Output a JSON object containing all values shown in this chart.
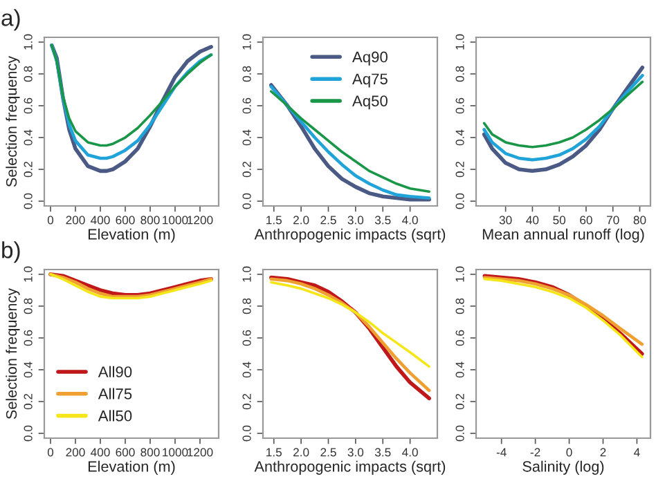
{
  "chart_data": [
    {
      "type": "line",
      "title": "a)",
      "xlabel": "Elevation (m)",
      "ylabel": "Selection frequency",
      "legend": false,
      "grid": false,
      "x": [
        10,
        50,
        100,
        150,
        200,
        300,
        400,
        450,
        500,
        600,
        700,
        800,
        900,
        1000,
        1100,
        1200,
        1290
      ],
      "xlim": [
        -50,
        1350
      ],
      "xticks": [
        0,
        200,
        400,
        600,
        800,
        1000,
        1200
      ],
      "ylim": [
        -0.03,
        1.03
      ],
      "yticks": [
        {
          "value": 0,
          "label": "0.0"
        },
        {
          "value": 0.2,
          "label": "0.2"
        },
        {
          "value": 0.4,
          "label": "0.4"
        },
        {
          "value": 0.6,
          "label": "0.6"
        },
        {
          "value": 0.8,
          "label": "0.8"
        },
        {
          "value": 1,
          "label": "1.0"
        }
      ],
      "series": [
        {
          "color": "#4a5a85",
          "values": [
            0.98,
            0.9,
            0.65,
            0.45,
            0.33,
            0.22,
            0.19,
            0.19,
            0.2,
            0.25,
            0.33,
            0.47,
            0.63,
            0.78,
            0.88,
            0.94,
            0.97
          ]
        },
        {
          "color": "#1fa3d8",
          "values": [
            0.98,
            0.88,
            0.65,
            0.48,
            0.38,
            0.29,
            0.27,
            0.27,
            0.28,
            0.32,
            0.38,
            0.48,
            0.6,
            0.72,
            0.81,
            0.88,
            0.92
          ]
        },
        {
          "color": "#1a9648",
          "values": [
            0.98,
            0.88,
            0.66,
            0.52,
            0.44,
            0.37,
            0.35,
            0.35,
            0.36,
            0.4,
            0.46,
            0.54,
            0.63,
            0.72,
            0.8,
            0.87,
            0.92
          ]
        }
      ]
    },
    {
      "type": "line",
      "xlabel": "Anthropogenic impacts (sqrt)",
      "legend": "top",
      "grid": false,
      "x": [
        1.45,
        1.75,
        2.0,
        2.25,
        2.5,
        2.75,
        3.0,
        3.25,
        3.5,
        3.75,
        4.0,
        4.35
      ],
      "xlim": [
        1.3,
        4.5
      ],
      "xticks": [
        {
          "value": 1.5,
          "label": "1.5"
        },
        {
          "value": 2,
          "label": "2.0"
        },
        {
          "value": 2.5,
          "label": "2.5"
        },
        {
          "value": 3,
          "label": "3.0"
        },
        {
          "value": 3.5,
          "label": "3.5"
        },
        {
          "value": 4,
          "label": "4.0"
        }
      ],
      "ylim": [
        -0.03,
        1.03
      ],
      "yticks": [
        {
          "value": 0,
          "label": "0.0"
        },
        {
          "value": 0.2,
          "label": "0.2"
        },
        {
          "value": 0.4,
          "label": "0.4"
        },
        {
          "value": 0.6,
          "label": "0.6"
        },
        {
          "value": 0.8,
          "label": "0.8"
        },
        {
          "value": 1,
          "label": "1.0"
        }
      ],
      "series": [
        {
          "name": "Aq90",
          "color": "#4a5a85",
          "values": [
            0.73,
            0.6,
            0.47,
            0.33,
            0.22,
            0.14,
            0.09,
            0.05,
            0.03,
            0.02,
            0.01,
            0.01
          ]
        },
        {
          "name": "Aq75",
          "color": "#1fa3d8",
          "values": [
            0.72,
            0.6,
            0.5,
            0.4,
            0.31,
            0.23,
            0.16,
            0.11,
            0.07,
            0.04,
            0.03,
            0.02
          ]
        },
        {
          "name": "Aq50",
          "color": "#1a9648",
          "values": [
            0.69,
            0.6,
            0.52,
            0.45,
            0.38,
            0.31,
            0.25,
            0.19,
            0.15,
            0.11,
            0.08,
            0.06
          ]
        }
      ]
    },
    {
      "type": "line",
      "xlabel": "Mean annual runoff (log)",
      "legend": false,
      "grid": false,
      "x": [
        22,
        25,
        30,
        35,
        40,
        45,
        50,
        55,
        60,
        65,
        70,
        75,
        81
      ],
      "xlim": [
        19,
        84
      ],
      "xticks": [
        30,
        40,
        50,
        60,
        70,
        80
      ],
      "ylim": [
        -0.03,
        1.03
      ],
      "yticks": [
        {
          "value": 0,
          "label": "0.0"
        },
        {
          "value": 0.2,
          "label": "0.2"
        },
        {
          "value": 0.4,
          "label": "0.4"
        },
        {
          "value": 0.6,
          "label": "0.6"
        },
        {
          "value": 0.8,
          "label": "0.8"
        },
        {
          "value": 1,
          "label": "1.0"
        }
      ],
      "series": [
        {
          "color": "#4a5a85",
          "values": [
            0.42,
            0.33,
            0.24,
            0.2,
            0.19,
            0.2,
            0.23,
            0.28,
            0.35,
            0.45,
            0.58,
            0.7,
            0.84
          ]
        },
        {
          "color": "#1fa3d8",
          "values": [
            0.45,
            0.37,
            0.3,
            0.27,
            0.26,
            0.27,
            0.29,
            0.33,
            0.39,
            0.47,
            0.58,
            0.68,
            0.79
          ]
        },
        {
          "color": "#1a9648",
          "values": [
            0.49,
            0.42,
            0.37,
            0.35,
            0.34,
            0.35,
            0.37,
            0.4,
            0.45,
            0.51,
            0.58,
            0.66,
            0.75
          ]
        }
      ]
    },
    {
      "type": "line",
      "title": "b)",
      "xlabel": "Elevation (m)",
      "ylabel": "Selection frequency",
      "legend": "bottom left",
      "grid": false,
      "x": [
        0,
        100,
        200,
        300,
        400,
        500,
        600,
        700,
        800,
        900,
        1000,
        1100,
        1200,
        1290
      ],
      "xlim": [
        -50,
        1350
      ],
      "xticks": [
        0,
        200,
        400,
        600,
        800,
        1000,
        1200
      ],
      "ylim": [
        -0.03,
        1.03
      ],
      "yticks": [
        {
          "value": 0,
          "label": "0.0"
        },
        {
          "value": 0.2,
          "label": "0.2"
        },
        {
          "value": 0.4,
          "label": "0.4"
        },
        {
          "value": 0.6,
          "label": "0.6"
        },
        {
          "value": 0.8,
          "label": "0.8"
        },
        {
          "value": 1,
          "label": "1.0"
        }
      ],
      "series": [
        {
          "name": "All90",
          "color": "#c0171b",
          "values": [
            1.0,
            0.99,
            0.96,
            0.93,
            0.9,
            0.88,
            0.87,
            0.87,
            0.88,
            0.9,
            0.92,
            0.94,
            0.96,
            0.97
          ]
        },
        {
          "name": "All75",
          "color": "#f0a030",
          "values": [
            1.0,
            0.98,
            0.95,
            0.91,
            0.88,
            0.86,
            0.86,
            0.86,
            0.87,
            0.89,
            0.91,
            0.93,
            0.95,
            0.97
          ]
        },
        {
          "name": "All50",
          "color": "#f5e61a",
          "values": [
            1.0,
            0.97,
            0.93,
            0.89,
            0.86,
            0.85,
            0.85,
            0.85,
            0.86,
            0.88,
            0.9,
            0.92,
            0.94,
            0.96
          ]
        }
      ]
    },
    {
      "type": "line",
      "xlabel": "Anthropogenic impacts (sqrt)",
      "legend": false,
      "grid": false,
      "x": [
        1.45,
        1.75,
        2.0,
        2.25,
        2.5,
        2.75,
        3.0,
        3.25,
        3.5,
        3.75,
        4.0,
        4.35
      ],
      "xlim": [
        1.3,
        4.5
      ],
      "xticks": [
        {
          "value": 1.5,
          "label": "1.5"
        },
        {
          "value": 2,
          "label": "2.0"
        },
        {
          "value": 2.5,
          "label": "2.5"
        },
        {
          "value": 3,
          "label": "3.0"
        },
        {
          "value": 3.5,
          "label": "3.5"
        },
        {
          "value": 4,
          "label": "4.0"
        }
      ],
      "ylim": [
        -0.03,
        1.03
      ],
      "yticks": [
        {
          "value": 0,
          "label": "0.0"
        },
        {
          "value": 0.2,
          "label": "0.2"
        },
        {
          "value": 0.4,
          "label": "0.4"
        },
        {
          "value": 0.6,
          "label": "0.6"
        },
        {
          "value": 0.8,
          "label": "0.8"
        },
        {
          "value": 1,
          "label": "1.0"
        }
      ],
      "series": [
        {
          "color": "#c0171b",
          "values": [
            0.98,
            0.97,
            0.95,
            0.93,
            0.89,
            0.83,
            0.76,
            0.66,
            0.54,
            0.42,
            0.32,
            0.22
          ]
        },
        {
          "color": "#f0a030",
          "values": [
            0.97,
            0.96,
            0.94,
            0.91,
            0.87,
            0.82,
            0.76,
            0.67,
            0.57,
            0.47,
            0.38,
            0.27
          ]
        },
        {
          "color": "#f5e61a",
          "values": [
            0.95,
            0.93,
            0.91,
            0.88,
            0.85,
            0.81,
            0.76,
            0.7,
            0.63,
            0.57,
            0.51,
            0.42
          ]
        }
      ]
    },
    {
      "type": "line",
      "xlabel": "Salinity (log)",
      "legend": false,
      "grid": false,
      "x": [
        -5,
        -4,
        -3,
        -2,
        -1,
        0,
        1,
        2,
        3,
        4.3
      ],
      "xlim": [
        -5.5,
        4.8
      ],
      "xticks": [
        -4,
        -2,
        0,
        2,
        4
      ],
      "ylim": [
        -0.03,
        1.03
      ],
      "yticks": [
        {
          "value": 0,
          "label": "0.0"
        },
        {
          "value": 0.2,
          "label": "0.2"
        },
        {
          "value": 0.4,
          "label": "0.4"
        },
        {
          "value": 0.6,
          "label": "0.6"
        },
        {
          "value": 0.8,
          "label": "0.8"
        },
        {
          "value": 1,
          "label": "1.0"
        }
      ],
      "series": [
        {
          "color": "#c0171b",
          "values": [
            0.99,
            0.98,
            0.97,
            0.95,
            0.92,
            0.87,
            0.8,
            0.72,
            0.63,
            0.5
          ]
        },
        {
          "color": "#f0a030",
          "values": [
            0.98,
            0.97,
            0.96,
            0.94,
            0.91,
            0.87,
            0.81,
            0.74,
            0.66,
            0.56
          ]
        },
        {
          "color": "#f5e61a",
          "values": [
            0.97,
            0.96,
            0.94,
            0.92,
            0.89,
            0.85,
            0.79,
            0.71,
            0.62,
            0.48
          ]
        }
      ]
    }
  ]
}
